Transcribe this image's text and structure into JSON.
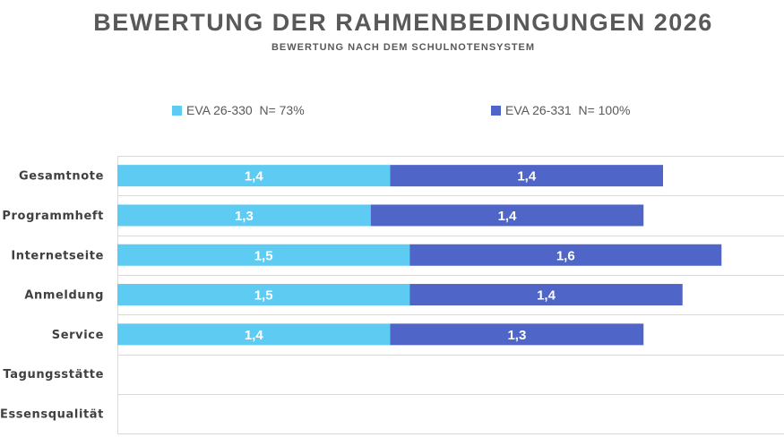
{
  "title": "BEWERTUNG DER RAHMENBEDINGUNGEN 2026",
  "subtitle": "BEWERTUNG NACH DEM SCHULNOTENSYSTEM",
  "legend": [
    {
      "label": "EVA 26-330  N= 73%",
      "color": "#5ECBF2"
    },
    {
      "label": "EVA 26-331  N= 100%",
      "color": "#4F66C8"
    }
  ],
  "chart_data": {
    "type": "bar",
    "orientation": "horizontal",
    "stacked": true,
    "title": "BEWERTUNG DER RAHMENBEDINGUNGEN 2026",
    "subtitle": "BEWERTUNG NACH DEM SCHULNOTENSYSTEM",
    "categories": [
      "Gesamtnote",
      "Programmheft",
      "Internetseite",
      "Anmeldung",
      "Service",
      "Tagungsstätte",
      "Essensqualität"
    ],
    "series": [
      {
        "name": "EVA 26-330  N= 73%",
        "color": "#5ECBF2",
        "values": [
          1.4,
          1.3,
          1.5,
          1.5,
          1.4,
          null,
          null
        ],
        "labels": [
          "1,4",
          "1,3",
          "1,5",
          "1,5",
          "1,4",
          "",
          ""
        ]
      },
      {
        "name": "EVA 26-331  N= 100%",
        "color": "#4F66C8",
        "values": [
          1.4,
          1.4,
          1.6,
          1.4,
          1.3,
          null,
          null
        ],
        "labels": [
          "1,4",
          "1,4",
          "1,6",
          "1,4",
          "1,3",
          "",
          ""
        ]
      }
    ],
    "legend_position": "top",
    "grid": "horizontal separators",
    "xlim": [
      0,
      3.4
    ]
  }
}
